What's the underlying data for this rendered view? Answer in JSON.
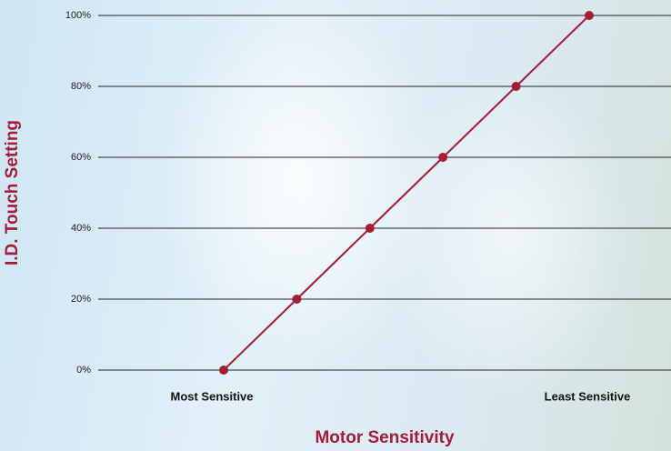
{
  "chart_data": {
    "type": "line",
    "x_label": "Motor Sensitivity",
    "y_label": "I.D. Touch Setting",
    "categories": [
      "Most Sensitive",
      null,
      null,
      null,
      null,
      "Least Sensitive"
    ],
    "values": [
      0,
      20,
      40,
      60,
      80,
      100
    ],
    "color": "#a51c36",
    "ylim": [
      0,
      100
    ],
    "yticks": [
      {
        "value": 0,
        "label": "0%"
      },
      {
        "value": 20,
        "label": "20%"
      },
      {
        "value": 40,
        "label": "40%"
      },
      {
        "value": 60,
        "label": "60%"
      },
      {
        "value": 80,
        "label": "80%"
      },
      {
        "value": 100,
        "label": "100%"
      }
    ],
    "grid": true
  }
}
